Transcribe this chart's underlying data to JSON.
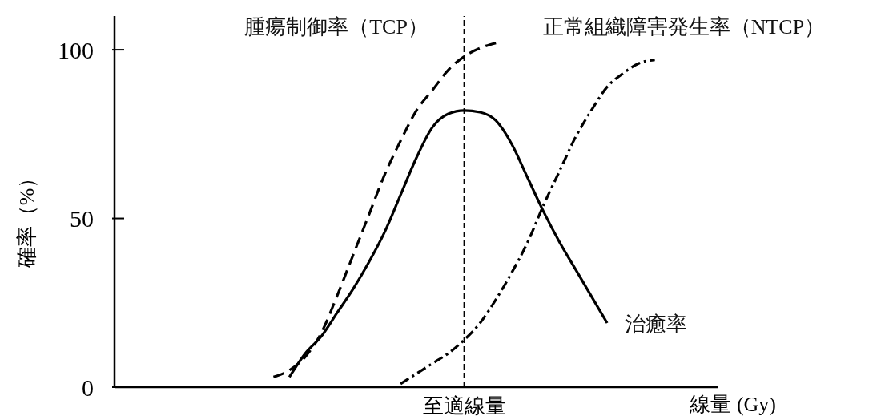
{
  "chart_data": {
    "type": "line",
    "ylabel": "確率（%）",
    "xlabel": "線量 (Gy)",
    "categories": [
      null,
      null,
      null,
      null,
      null,
      null,
      null,
      null,
      null,
      null,
      null,
      null,
      null,
      null,
      null,
      null,
      null,
      null,
      null,
      null,
      null,
      null,
      "至適線量",
      null,
      null,
      null,
      null,
      null,
      null,
      null,
      null,
      null,
      null,
      null,
      null,
      null,
      null,
      null,
      null
    ],
    "ylim": [
      0,
      110
    ],
    "yticks": [
      0,
      50,
      100
    ],
    "grid": false,
    "marker": "none",
    "ref_lines": [
      {
        "axis": "x",
        "value": "至適線量",
        "line_style": "dashed",
        "color": "#000000"
      }
    ],
    "series": [
      {
        "name": "腫瘍制御率（TCP）",
        "color": "#000000",
        "line_style": "dashed",
        "values": [
          null,
          null,
          null,
          null,
          null,
          null,
          null,
          null,
          null,
          null,
          3,
          5,
          9,
          16,
          27,
          39,
          51,
          63,
          73,
          82,
          88,
          94,
          98,
          100.5,
          102,
          null,
          null,
          null,
          null,
          null,
          null,
          null,
          null,
          null,
          null,
          null,
          null,
          null,
          null
        ]
      },
      {
        "name": "正常組織障害発生率（NTCP）",
        "color": "#000000",
        "line_style": "dashdot",
        "values": [
          null,
          null,
          null,
          null,
          null,
          null,
          null,
          null,
          null,
          null,
          null,
          null,
          null,
          null,
          null,
          null,
          null,
          null,
          1,
          4,
          7,
          10,
          14,
          19,
          26,
          34,
          43,
          54,
          64,
          74,
          82,
          89,
          93,
          96,
          97,
          null,
          null,
          null,
          null
        ]
      },
      {
        "name": "治癒率",
        "color": "#000000",
        "line_style": "solid",
        "values": [
          null,
          null,
          null,
          null,
          null,
          null,
          null,
          null,
          null,
          null,
          null,
          3,
          10,
          15,
          22,
          29,
          37,
          46,
          57,
          68,
          77,
          81,
          82,
          81.5,
          79,
          72,
          62,
          52,
          43,
          35,
          27,
          19,
          null,
          null,
          null,
          null,
          null,
          null,
          null
        ]
      }
    ]
  }
}
